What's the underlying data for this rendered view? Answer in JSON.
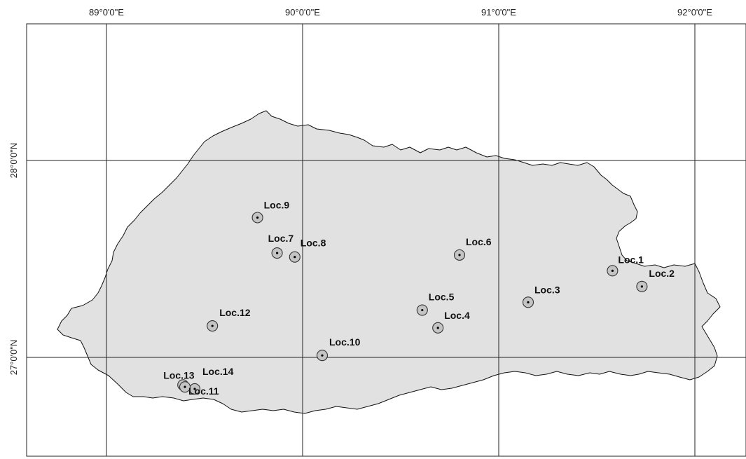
{
  "map": {
    "longitude_labels": [
      {
        "value": 89,
        "text": "89°0'0\"E"
      },
      {
        "value": 90,
        "text": "90°0'0\"E"
      },
      {
        "value": 91,
        "text": "91°0'0\"E"
      },
      {
        "value": 92,
        "text": "92°0'0\"E"
      }
    ],
    "latitude_labels": [
      {
        "value": 28,
        "text": "28°0'0\"N"
      },
      {
        "value": 27,
        "text": "27°0'0\"N"
      }
    ],
    "colors": {
      "country_fill": "#e1e1e1",
      "border": "#111111",
      "marker_fill": "#c4c4c4"
    },
    "locations": [
      {
        "id": "loc-1",
        "label": "Loc.1",
        "lon": 91.58,
        "lat": 27.44
      },
      {
        "id": "loc-2",
        "label": "Loc.2",
        "lon": 91.73,
        "lat": 27.36
      },
      {
        "id": "loc-3",
        "label": "Loc.3",
        "lon": 91.15,
        "lat": 27.28
      },
      {
        "id": "loc-4",
        "label": "Loc.4",
        "lon": 90.69,
        "lat": 27.15
      },
      {
        "id": "loc-5",
        "label": "Loc.5",
        "lon": 90.61,
        "lat": 27.24
      },
      {
        "id": "loc-6",
        "label": "Loc.6",
        "lon": 90.8,
        "lat": 27.52
      },
      {
        "id": "loc-7",
        "label": "Loc.7",
        "lon": 89.87,
        "lat": 27.53
      },
      {
        "id": "loc-8",
        "label": "Loc.8",
        "lon": 89.96,
        "lat": 27.51
      },
      {
        "id": "loc-9",
        "label": "Loc.9",
        "lon": 89.77,
        "lat": 27.71
      },
      {
        "id": "loc-10",
        "label": "Loc.10",
        "lon": 90.1,
        "lat": 27.01
      },
      {
        "id": "loc-11",
        "label": "Loc.11",
        "lon": 89.45,
        "lat": 26.84
      },
      {
        "id": "loc-12",
        "label": "Loc.12",
        "lon": 89.54,
        "lat": 27.16
      },
      {
        "id": "loc-13",
        "label": "Loc.13",
        "lon": 89.39,
        "lat": 26.86
      },
      {
        "id": "loc-14",
        "label": "Loc.14",
        "lon": 89.4,
        "lat": 26.85
      }
    ]
  }
}
